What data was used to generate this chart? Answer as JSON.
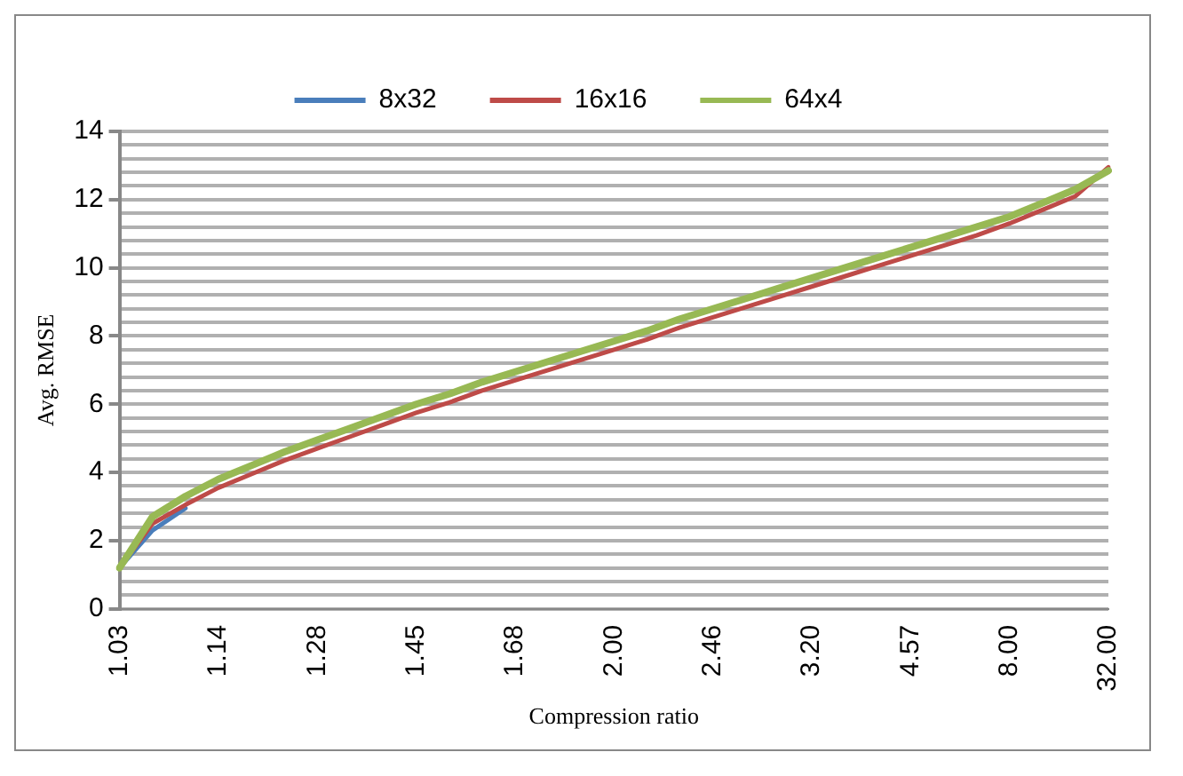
{
  "chart_data": {
    "type": "line",
    "xlabel": "Compression ratio",
    "ylabel": "Avg. RMSE",
    "categories": [
      "1.03",
      null,
      null,
      "1.14",
      null,
      null,
      "1.28",
      null,
      null,
      "1.45",
      null,
      null,
      "1.68",
      null,
      null,
      "2.00",
      null,
      null,
      "2.46",
      null,
      null,
      "3.20",
      null,
      null,
      "4.57",
      null,
      null,
      "8.00",
      null,
      null,
      "32.00"
    ],
    "series": [
      {
        "name": "8x32",
        "color": "#4a7ebb",
        "values": [
          1.2,
          2.3,
          2.95,
          null,
          null,
          null,
          null,
          null,
          null,
          null,
          null,
          null,
          null,
          null,
          null,
          null,
          null,
          null,
          null,
          null,
          null,
          null,
          null,
          null,
          null,
          null,
          null,
          null,
          null,
          null,
          null
        ]
      },
      {
        "name": "16x16",
        "color": "#be4b48",
        "values": [
          1.2,
          2.5,
          3.05,
          3.55,
          3.95,
          4.35,
          4.7,
          5.05,
          5.4,
          5.75,
          6.05,
          6.4,
          6.7,
          7.0,
          7.3,
          7.6,
          7.9,
          8.25,
          8.55,
          8.85,
          9.15,
          9.45,
          9.75,
          10.05,
          10.35,
          10.65,
          10.95,
          11.3,
          11.7,
          12.1,
          12.95
        ]
      },
      {
        "name": "64x4",
        "color": "#98b954",
        "values": [
          1.2,
          2.7,
          3.3,
          3.8,
          4.2,
          4.6,
          4.95,
          5.3,
          5.65,
          6.0,
          6.3,
          6.65,
          6.95,
          7.25,
          7.55,
          7.85,
          8.15,
          8.5,
          8.8,
          9.1,
          9.4,
          9.7,
          10.0,
          10.3,
          10.6,
          10.9,
          11.2,
          11.5,
          11.9,
          12.3,
          12.85
        ]
      }
    ],
    "ylim": [
      0,
      14
    ],
    "yticks": [
      0,
      {
        "value": 0.4,
        "label": null
      },
      {
        "value": 0.8,
        "label": null
      },
      {
        "value": 1.2,
        "label": null
      },
      {
        "value": 1.6,
        "label": null
      },
      2,
      {
        "value": 2.4,
        "label": null
      },
      {
        "value": 2.8,
        "label": null
      },
      {
        "value": 3.2,
        "label": null
      },
      {
        "value": 3.6,
        "label": null
      },
      4,
      {
        "value": 4.4,
        "label": null
      },
      {
        "value": 4.8,
        "label": null
      },
      {
        "value": 5.2,
        "label": null
      },
      {
        "value": 5.6,
        "label": null
      },
      6,
      {
        "value": 6.4,
        "label": null
      },
      {
        "value": 6.8,
        "label": null
      },
      {
        "value": 7.2,
        "label": null
      },
      {
        "value": 7.6,
        "label": null
      },
      8,
      {
        "value": 8.4,
        "label": null
      },
      {
        "value": 8.8,
        "label": null
      },
      {
        "value": 9.2,
        "label": null
      },
      {
        "value": 9.6,
        "label": null
      },
      10,
      {
        "value": 10.4,
        "label": null
      },
      {
        "value": 10.8,
        "label": null
      },
      {
        "value": 11.2,
        "label": null
      },
      {
        "value": 11.6,
        "label": null
      },
      12,
      {
        "value": 12.4,
        "label": null
      },
      {
        "value": 12.8,
        "label": null
      },
      {
        "value": 13.2,
        "label": null
      },
      {
        "value": 13.6,
        "label": null
      },
      14
    ],
    "grid": "y",
    "legend": "top",
    "marker": "none",
    "line_style": "solid"
  }
}
